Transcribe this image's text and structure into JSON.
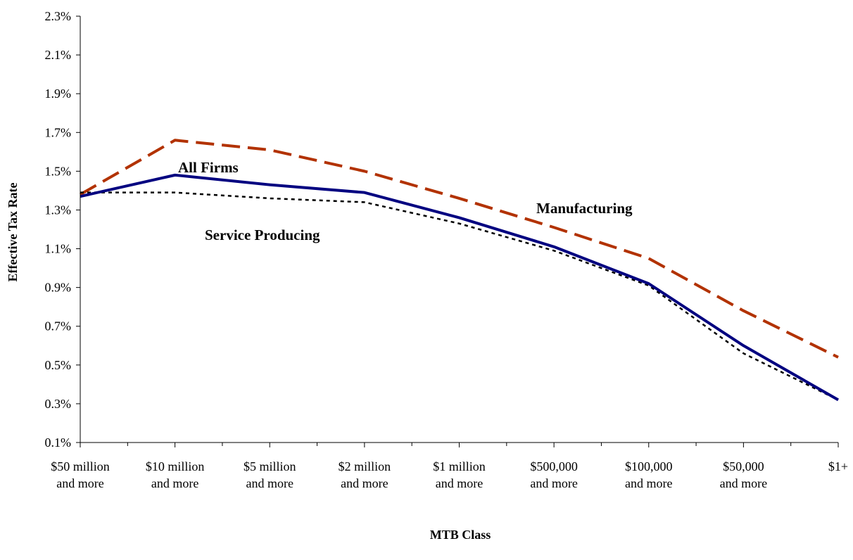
{
  "chart_data": {
    "type": "line",
    "title": "",
    "xlabel": "MTB Class",
    "ylabel": "Effective Tax Rate",
    "categories": [
      [
        "$50 million",
        "and more"
      ],
      [
        "$10 million",
        "and more"
      ],
      [
        "$5 million",
        "and more"
      ],
      [
        "$2 million",
        "and more"
      ],
      [
        "$1 million",
        "and more"
      ],
      [
        "$500,000",
        "and more"
      ],
      [
        "$100,000",
        "and more"
      ],
      [
        "$50,000",
        "and more"
      ],
      [
        "$1+"
      ]
    ],
    "ylim": [
      0.1,
      2.3
    ],
    "yticks": [
      "0.1%",
      "0.3%",
      "0.5%",
      "0.7%",
      "0.9%",
      "1.1%",
      "1.3%",
      "1.5%",
      "1.7%",
      "1.9%",
      "2.1%",
      "2.3%"
    ],
    "grid": false,
    "legend": "none",
    "series": [
      {
        "name": "All Firms",
        "values": [
          1.37,
          1.48,
          1.43,
          1.39,
          1.26,
          1.11,
          0.92,
          0.6,
          0.32
        ],
        "color": "#000080",
        "style": "solid"
      },
      {
        "name": "Manufacturing",
        "values": [
          1.38,
          1.66,
          1.61,
          1.5,
          1.36,
          1.21,
          1.05,
          0.78,
          0.54
        ],
        "color": "#B23200",
        "style": "dashed"
      },
      {
        "name": "Service Producing",
        "values": [
          1.39,
          1.39,
          1.36,
          1.34,
          1.23,
          1.09,
          0.91,
          0.56,
          0.32
        ],
        "color": "#000000",
        "style": "dotted"
      }
    ]
  }
}
